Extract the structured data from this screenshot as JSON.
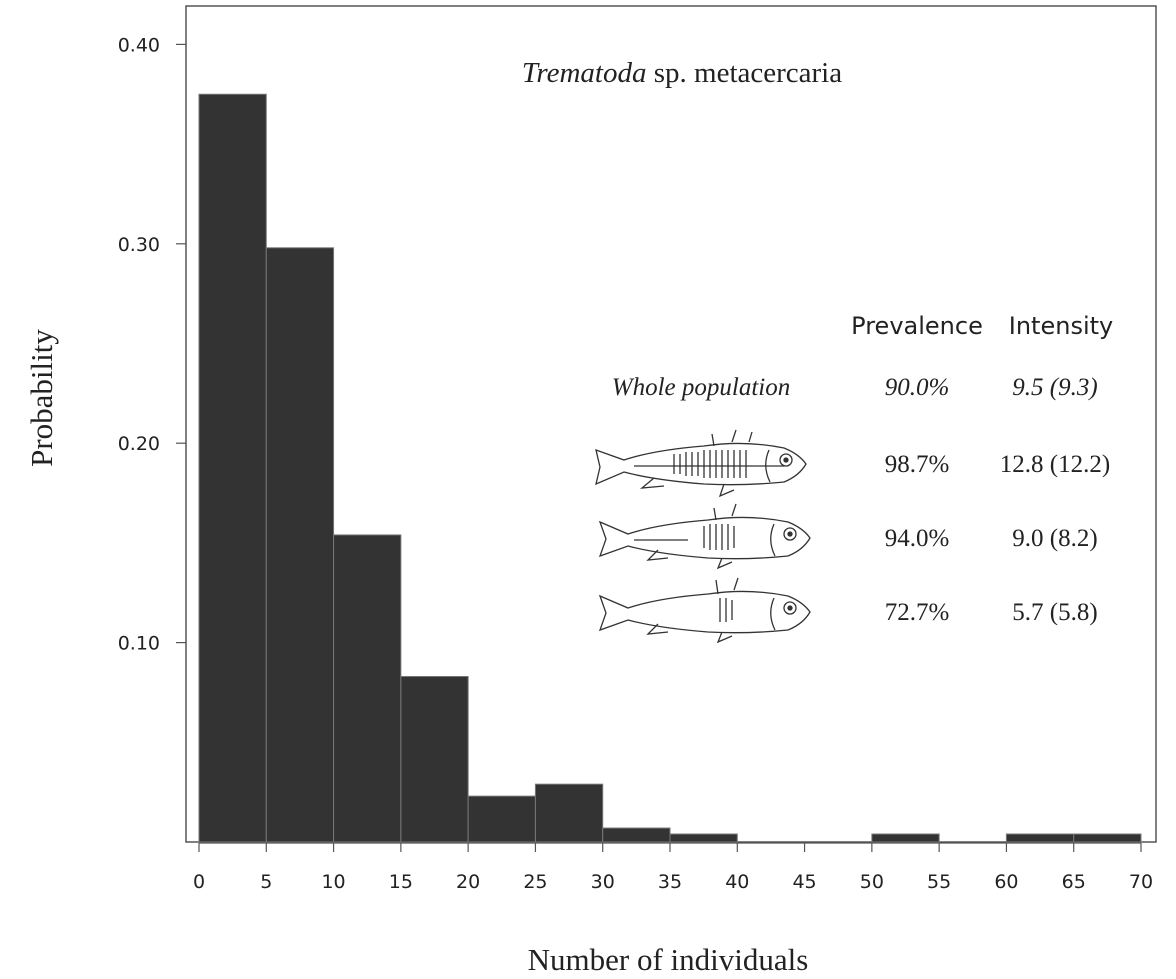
{
  "chart_data": {
    "type": "bar",
    "title_italic": "Trematoda",
    "title_rest": " sp. metacercaria",
    "xlabel": "Number of individuals",
    "ylabel": "Probability",
    "xlim": [
      0,
      70
    ],
    "ylim": [
      0,
      0.42
    ],
    "xticks": [
      "0",
      "5",
      "10",
      "15",
      "20",
      "25",
      "30",
      "35",
      "40",
      "45",
      "50",
      "55",
      "60",
      "65",
      "70"
    ],
    "yticks": [
      {
        "value": 0.1,
        "label": "0.10"
      },
      {
        "value": 0.2,
        "label": "0.20"
      },
      {
        "value": 0.3,
        "label": "0.30"
      },
      {
        "value": 0.4,
        "label": "0.40"
      }
    ],
    "bins": [
      {
        "start": 0,
        "end": 5,
        "value": 0.375
      },
      {
        "start": 5,
        "end": 10,
        "value": 0.298
      },
      {
        "start": 10,
        "end": 15,
        "value": 0.154
      },
      {
        "start": 15,
        "end": 20,
        "value": 0.083
      },
      {
        "start": 20,
        "end": 25,
        "value": 0.023
      },
      {
        "start": 25,
        "end": 30,
        "value": 0.029
      },
      {
        "start": 30,
        "end": 35,
        "value": 0.007
      },
      {
        "start": 35,
        "end": 40,
        "value": 0.004
      },
      {
        "start": 40,
        "end": 45,
        "value": 0
      },
      {
        "start": 45,
        "end": 50,
        "value": 0
      },
      {
        "start": 50,
        "end": 55,
        "value": 0.004
      },
      {
        "start": 55,
        "end": 60,
        "value": 0
      },
      {
        "start": 60,
        "end": 65,
        "value": 0.004
      },
      {
        "start": 65,
        "end": 70,
        "value": 0.004
      }
    ],
    "bar_color": "#333333",
    "table": {
      "headers": [
        "Prevalence",
        "Intensity"
      ],
      "rows": [
        {
          "label": "Whole population",
          "prevalence": "90.0%",
          "intensity": "9.5 (9.3)",
          "italic": true,
          "icon": "text"
        },
        {
          "label": "",
          "prevalence": "98.7%",
          "intensity": "12.8 (12.2)",
          "italic": false,
          "icon": "fish-heavy-armor-icon"
        },
        {
          "label": "",
          "prevalence": "94.0%",
          "intensity": "9.0 (8.2)",
          "italic": false,
          "icon": "fish-medium-armor-icon"
        },
        {
          "label": "",
          "prevalence": "72.7%",
          "intensity": "5.7 (5.8)",
          "italic": false,
          "icon": "fish-light-armor-icon"
        }
      ]
    }
  }
}
